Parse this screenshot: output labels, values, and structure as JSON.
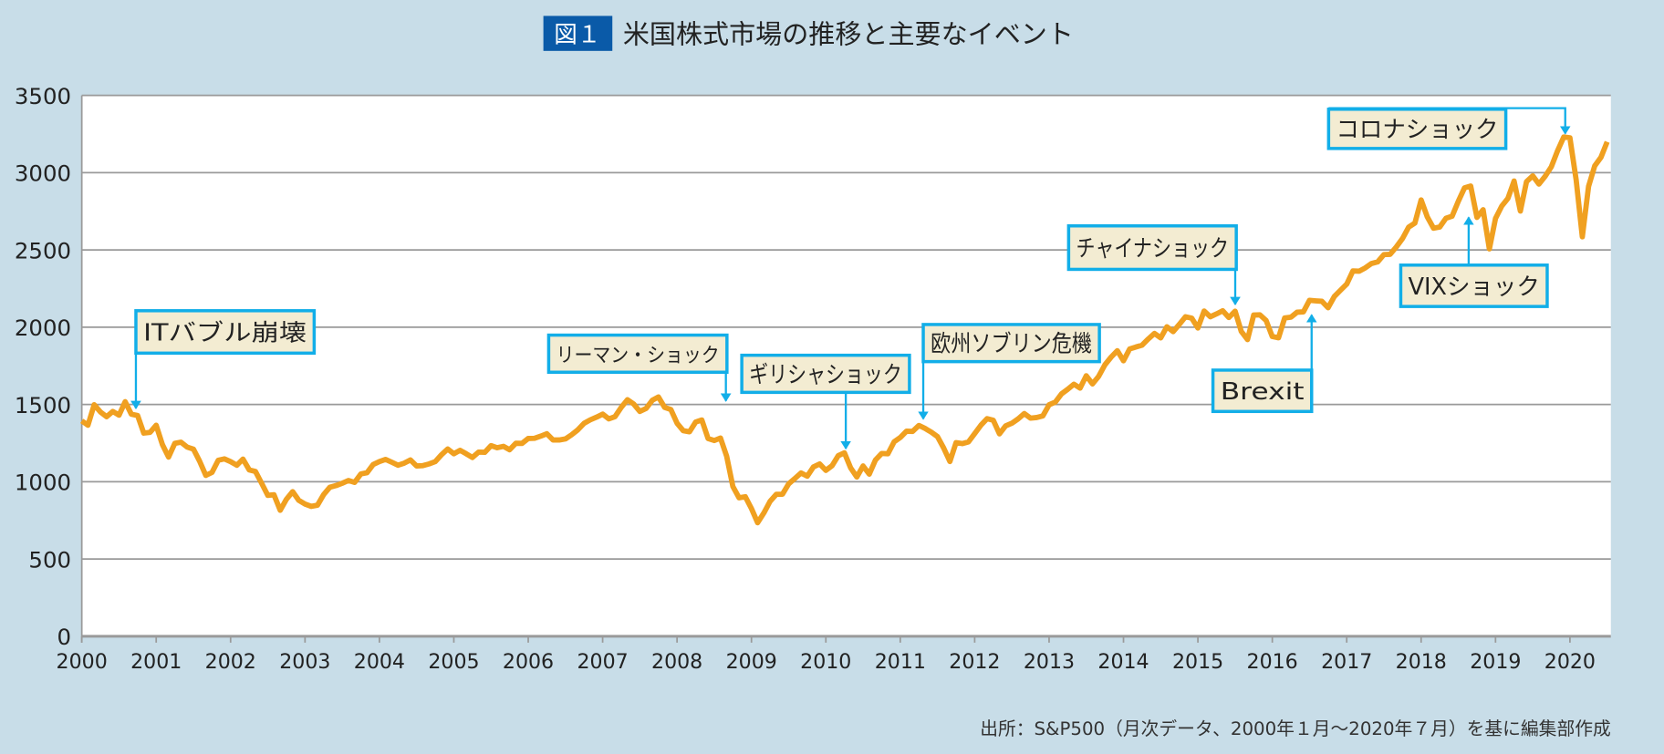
{
  "header": {
    "figure_badge": "図１",
    "title": "米国株式市場の推移と主要なイベント"
  },
  "source_note": "出所：S&P500（月次データ、2000年１月〜2020年７月）を基に編集部作成",
  "colors": {
    "background": "#c8dde8",
    "badge": "#0a5aa8",
    "line": "#f0a020",
    "arrow": "#12aee8",
    "label_fill": "#f3ecd2",
    "grid": "#9a9a9a"
  },
  "chart_data": {
    "type": "line",
    "title": "米国株式市場の推移と主要なイベント",
    "xlabel": "",
    "ylabel": "",
    "x_start": "2000-01",
    "x_end": "2020-07",
    "frequency": "monthly",
    "xlim": [
      2000,
      2020.55
    ],
    "ylim": [
      0,
      3500
    ],
    "grid": true,
    "x_ticks": [
      "2000",
      "2001",
      "2002",
      "2003",
      "2004",
      "2005",
      "2006",
      "2007",
      "2008",
      "2009",
      "2010",
      "2011",
      "2012",
      "2013",
      "2014",
      "2015",
      "2016",
      "2017",
      "2018",
      "2019",
      "2020"
    ],
    "y_ticks": [
      "0",
      "500",
      "1000",
      "1500",
      "2000",
      "2500",
      "3000",
      "3500"
    ],
    "series": [
      {
        "values": [
          1394,
          1366,
          1499,
          1452,
          1421,
          1455,
          1431,
          1518,
          1437,
          1429,
          1315,
          1320,
          1366,
          1240,
          1160,
          1249,
          1256,
          1224,
          1211,
          1134,
          1041,
          1060,
          1139,
          1148,
          1130,
          1107,
          1147,
          1077,
          1067,
          990,
          912,
          916,
          815,
          886,
          936,
          880,
          856,
          841,
          848,
          917,
          964,
          975,
          990,
          1008,
          996,
          1051,
          1058,
          1112,
          1131,
          1145,
          1126,
          1107,
          1121,
          1141,
          1102,
          1104,
          1115,
          1130,
          1174,
          1212,
          1181,
          1204,
          1181,
          1157,
          1192,
          1191,
          1234,
          1220,
          1229,
          1207,
          1249,
          1248,
          1280,
          1281,
          1295,
          1311,
          1270,
          1270,
          1277,
          1304,
          1336,
          1378,
          1401,
          1418,
          1438,
          1407,
          1421,
          1482,
          1531,
          1503,
          1455,
          1474,
          1527,
          1549,
          1481,
          1468,
          1379,
          1331,
          1323,
          1386,
          1400,
          1280,
          1267,
          1283,
          1166,
          969,
          896,
          903,
          826,
          735,
          798,
          873,
          919,
          919,
          987,
          1021,
          1057,
          1036,
          1096,
          1115,
          1074,
          1104,
          1169,
          1187,
          1089,
          1031,
          1102,
          1049,
          1141,
          1183,
          1181,
          1258,
          1286,
          1327,
          1326,
          1364,
          1345,
          1321,
          1292,
          1219,
          1131,
          1253,
          1247,
          1258,
          1312,
          1366,
          1408,
          1398,
          1310,
          1362,
          1379,
          1407,
          1441,
          1412,
          1416,
          1426,
          1498,
          1515,
          1569,
          1598,
          1631,
          1606,
          1686,
          1633,
          1682,
          1757,
          1806,
          1848,
          1783,
          1859,
          1872,
          1884,
          1924,
          1960,
          1931,
          2003,
          1972,
          2018,
          2068,
          2059,
          1995,
          2105,
          2068,
          2086,
          2107,
          2063,
          2104,
          1973,
          1920,
          2079,
          2080,
          2044,
          1940,
          1932,
          2060,
          2065,
          2097,
          2099,
          2174,
          2171,
          2168,
          2126,
          2199,
          2239,
          2279,
          2364,
          2363,
          2384,
          2412,
          2423,
          2470,
          2472,
          2519,
          2575,
          2648,
          2674,
          2824,
          2714,
          2641,
          2648,
          2705,
          2718,
          2816,
          2902,
          2914,
          2711,
          2760,
          2507,
          2704,
          2784,
          2834,
          2946,
          2752,
          2942,
          2980,
          2926,
          2977,
          3038,
          3141,
          3231,
          3226,
          2954,
          2585,
          2912,
          3044,
          3100,
          3200
        ]
      }
    ],
    "annotations": [
      {
        "label": "ITバブル崩壊",
        "x": 2000.72,
        "y": 1460
      },
      {
        "label": "リーマン・ショック",
        "x": 2008.67,
        "y": 1270
      },
      {
        "label": "ギリシャショック",
        "x": 2010.25,
        "y": 1190
      },
      {
        "label": "欧州ソブリン危機",
        "x": 2011.3,
        "y": 1400
      },
      {
        "label": "チャイナショック",
        "x": 2015.5,
        "y": 2120
      },
      {
        "label": "Brexit",
        "x": 2016.5,
        "y": 2090
      },
      {
        "label": "VIXショック",
        "x": 2018.65,
        "y": 2900
      },
      {
        "label": "コロナショック",
        "x": 2019.93,
        "y": 3240
      }
    ]
  }
}
